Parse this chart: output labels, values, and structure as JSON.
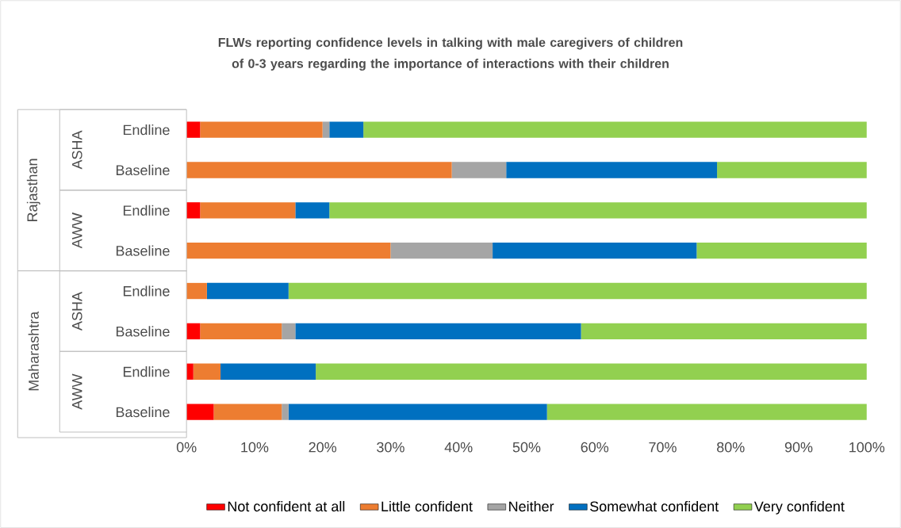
{
  "chart_data": {
    "type": "bar",
    "orientation": "horizontal",
    "stacked": true,
    "legend": "bottom",
    "title": "FLWs reporting confidence levels in talking with male caregivers of children of 0-3 years regarding the importance of interactions with their children",
    "categories": [
      "Endline",
      "Baseline",
      "Endline",
      "Baseline",
      "Endline",
      "Baseline",
      "Endline",
      "Baseline"
    ],
    "annotations": [
      "ASHA",
      "AWW",
      "ASHA",
      "AWW",
      "Rajasthan",
      "Maharashtra"
    ],
    "xlim": [
      0,
      100
    ],
    "xticks": [
      {
        "value": 0,
        "label": "0%"
      },
      {
        "value": 10,
        "label": "10%"
      },
      {
        "value": 20,
        "label": "20%"
      },
      {
        "value": 30,
        "label": "30%"
      },
      {
        "value": 40,
        "label": "40%"
      },
      {
        "value": 50,
        "label": "50%"
      },
      {
        "value": 60,
        "label": "60%"
      },
      {
        "value": 70,
        "label": "70%"
      },
      {
        "value": 80,
        "label": "80%"
      },
      {
        "value": 90,
        "label": "90%"
      },
      {
        "value": 100,
        "label": "100%"
      }
    ],
    "series": [
      {
        "name": "Not confident at all",
        "color": "#ff0000",
        "values": [
          2,
          null,
          2,
          null,
          null,
          2,
          1,
          4
        ]
      },
      {
        "name": "Little confident",
        "color": "#ed7d31",
        "values": [
          18,
          39,
          14,
          30,
          3,
          12,
          4,
          10
        ]
      },
      {
        "name": "Neither",
        "color": "#a5a5a5",
        "values": [
          1,
          8,
          null,
          15,
          null,
          2,
          null,
          1
        ]
      },
      {
        "name": "Somewhat confident",
        "color": "#0070c0",
        "values": [
          5,
          31,
          5,
          30,
          12,
          42,
          14,
          38
        ]
      },
      {
        "name": "Very confident",
        "color": "#92d050",
        "values": [
          74,
          22,
          79,
          25,
          85,
          42,
          81,
          47
        ]
      }
    ]
  }
}
